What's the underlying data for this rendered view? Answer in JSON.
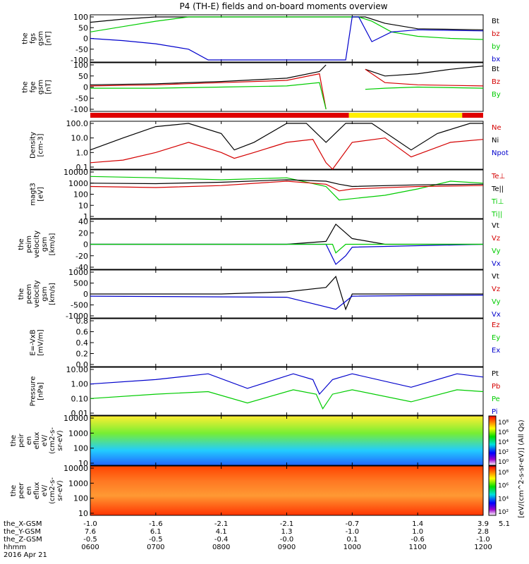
{
  "title": "P4 (TH-E) fields and on-board moments overview",
  "colors": {
    "black": "#000000",
    "red": "#d40000",
    "green": "#00cc00",
    "blue": "#0000cc",
    "yellow": "#ffee00",
    "cyan": "#00e0e0"
  },
  "panels": [
    {
      "id": "fgs",
      "ylabel": [
        "the",
        "fgs",
        "gsm",
        "[nT]"
      ],
      "ticks": [
        "100",
        "50",
        "0",
        "-50",
        "-100"
      ],
      "legend": [
        {
          "text": "Bt",
          "color": "black"
        },
        {
          "text": "bz",
          "color": "red"
        },
        {
          "text": "by",
          "color": "green"
        },
        {
          "text": "bx",
          "color": "blue"
        }
      ]
    },
    {
      "id": "fge",
      "ylabel": [
        "the",
        "fge",
        "gsm",
        "[nT]"
      ],
      "ticks": [
        "100",
        "50",
        "0",
        "-50",
        "-100"
      ],
      "legend": [
        {
          "text": "Bt",
          "color": "black"
        },
        {
          "text": "Bz",
          "color": "red"
        },
        {
          "text": "By",
          "color": "green"
        }
      ]
    },
    {
      "id": "density",
      "ylabel": [
        "Density",
        "[cm-3]"
      ],
      "ticks": [
        "100.0",
        "10.0",
        "1.0",
        "0.1"
      ],
      "legend": [
        {
          "text": "Ne",
          "color": "red"
        },
        {
          "text": "Ni",
          "color": "black"
        },
        {
          "text": "Npot",
          "color": "blue"
        }
      ]
    },
    {
      "id": "temp",
      "ylabel": [
        "magt3",
        "[eV]"
      ],
      "ticks": [
        "10000",
        "1000",
        "100",
        "10",
        "1"
      ],
      "legend": [
        {
          "text": "Te⊥",
          "color": "red"
        },
        {
          "text": "Te||",
          "color": "black"
        },
        {
          "text": "Ti⊥",
          "color": "green"
        },
        {
          "text": "Ti||",
          "color": "green"
        }
      ]
    },
    {
      "id": "peim",
      "ylabel": [
        "the",
        "peim",
        "velocity",
        "gsm",
        "[km/s]"
      ],
      "ticks": [
        "40",
        "20",
        "0",
        "-20",
        "-40"
      ],
      "legend": [
        {
          "text": "Vt",
          "color": "black"
        },
        {
          "text": "Vz",
          "color": "red"
        },
        {
          "text": "Vy",
          "color": "green"
        },
        {
          "text": "Vx",
          "color": "blue"
        }
      ]
    },
    {
      "id": "peem",
      "ylabel": [
        "the",
        "peem",
        "velocity",
        "gsm",
        "[km/s]"
      ],
      "ticks": [
        "1000",
        "500",
        "0",
        "-500",
        "-1000"
      ],
      "legend": [
        {
          "text": "Vt",
          "color": "black"
        },
        {
          "text": "Vz",
          "color": "red"
        },
        {
          "text": "Vy",
          "color": "green"
        },
        {
          "text": "Vx",
          "color": "blue"
        }
      ]
    },
    {
      "id": "efield",
      "ylabel": [
        "E=-VxB",
        "[mV/m]"
      ],
      "ticks": [
        "0.8",
        "0.6",
        "0.4",
        "0.2",
        "0.0"
      ],
      "legend": [
        {
          "text": "Ez",
          "color": "red"
        },
        {
          "text": "Ey",
          "color": "green"
        },
        {
          "text": "Ex",
          "color": "blue"
        }
      ]
    },
    {
      "id": "pressure",
      "ylabel": [
        "Pressure",
        "[nPa]"
      ],
      "ticks": [
        "10.00",
        "1.00",
        "0.10",
        "0.01"
      ],
      "legend": [
        {
          "text": "Pt",
          "color": "black"
        },
        {
          "text": "Pb",
          "color": "red"
        },
        {
          "text": "Pe",
          "color": "green"
        },
        {
          "text": "Pi",
          "color": "blue"
        }
      ]
    },
    {
      "id": "peir",
      "ylabel": [
        "the",
        "peir",
        "en",
        "eflux",
        "eV/",
        "(cm2-s-",
        "sr-eV)"
      ],
      "ticks": [
        "10000",
        "1000",
        "100",
        "10"
      ],
      "legend": []
    },
    {
      "id": "peer",
      "ylabel": [
        "the",
        "peer",
        "en",
        "eflux",
        "eV/",
        "(cm2-s-",
        "sr-eV)"
      ],
      "ticks": [
        "10000",
        "1000",
        "100",
        "10"
      ],
      "legend": []
    }
  ],
  "colorbar": {
    "label": "[eV/(cm^2-s-sr-eV)] (All Qs)",
    "ticks1": [
      "10⁸",
      "10⁶",
      "10⁴",
      "10²",
      "10⁰"
    ],
    "ticks2": [
      "10⁸",
      "10⁶",
      "10⁴",
      "10²"
    ]
  },
  "xaxis": {
    "rows": [
      {
        "label": "the_X-GSM",
        "values": [
          "-1.0",
          "-1.6",
          "-2.1",
          "-2.1",
          "-0.7",
          "1.4",
          "3.9",
          "5.1"
        ]
      },
      {
        "label": "the_Y-GSM",
        "values": [
          "7.6",
          "6.1",
          "4.1",
          "1.3",
          "-1.0",
          "1.0",
          "2.8",
          ""
        ]
      },
      {
        "label": "the_Z-GSM",
        "values": [
          "-0.5",
          "-0.5",
          "-0.4",
          "-0.0",
          "0.1",
          "-0.6",
          "-1.0",
          ""
        ]
      },
      {
        "label": "hhmm",
        "values": [
          "0600",
          "0700",
          "0800",
          "0900",
          "1000",
          "1100",
          "1200",
          ""
        ]
      }
    ],
    "date": "2016 Apr 21"
  },
  "chart_data": {
    "type": "line",
    "title": "P4 (TH-E) fields and on-board moments overview",
    "time_ticks": [
      "0600",
      "0700",
      "0800",
      "0900",
      "1000",
      "1100",
      "1200"
    ],
    "series": [
      {
        "panel": "fgs",
        "name": "Bt",
        "points": [
          [
            6.0,
            75
          ],
          [
            6.5,
            90
          ],
          [
            7.0,
            100
          ],
          [
            8.0,
            100
          ],
          [
            9.0,
            100
          ],
          [
            9.5,
            100
          ],
          [
            9.7,
            100
          ],
          [
            10.2,
            100
          ],
          [
            10.5,
            70
          ],
          [
            11.0,
            45
          ],
          [
            12.0,
            40
          ]
        ]
      },
      {
        "panel": "fgs",
        "name": "by",
        "points": [
          [
            6.0,
            30
          ],
          [
            6.5,
            55
          ],
          [
            7.0,
            80
          ],
          [
            7.5,
            100
          ],
          [
            9.5,
            100
          ],
          [
            9.9,
            100
          ],
          [
            10.1,
            100
          ],
          [
            10.3,
            80
          ],
          [
            10.6,
            30
          ],
          [
            11.0,
            10
          ],
          [
            11.5,
            0
          ],
          [
            12.0,
            -5
          ]
        ]
      },
      {
        "panel": "fgs",
        "name": "bx",
        "points": [
          [
            6.0,
            0
          ],
          [
            6.5,
            -10
          ],
          [
            7.0,
            -25
          ],
          [
            7.5,
            -50
          ],
          [
            7.8,
            -100
          ],
          [
            9.9,
            -100
          ],
          [
            10.0,
            100
          ],
          [
            10.1,
            100
          ],
          [
            10.3,
            -15
          ],
          [
            10.6,
            30
          ],
          [
            11.0,
            40
          ],
          [
            12.0,
            35
          ]
        ]
      },
      {
        "panel": "density",
        "name": "Ni",
        "points": [
          [
            6.0,
            1.5
          ],
          [
            6.5,
            10
          ],
          [
            7.0,
            60
          ],
          [
            7.5,
            100
          ],
          [
            8.0,
            20
          ],
          [
            8.2,
            1.5
          ],
          [
            8.5,
            5
          ],
          [
            9.0,
            100
          ],
          [
            9.3,
            100
          ],
          [
            9.6,
            5
          ],
          [
            9.9,
            100
          ],
          [
            10.3,
            100
          ],
          [
            10.9,
            1.5
          ],
          [
            11.3,
            20
          ],
          [
            11.8,
            100
          ],
          [
            12.0,
            100
          ]
        ]
      },
      {
        "panel": "density",
        "name": "Ne",
        "points": [
          [
            6.0,
            0.2
          ],
          [
            6.5,
            0.3
          ],
          [
            7.0,
            1.0
          ],
          [
            7.5,
            5
          ],
          [
            8.0,
            1.0
          ],
          [
            8.2,
            0.4
          ],
          [
            8.5,
            1.0
          ],
          [
            9.0,
            5
          ],
          [
            9.4,
            8
          ],
          [
            9.6,
            0.2
          ],
          [
            9.7,
            0.05
          ],
          [
            10.0,
            5
          ],
          [
            10.5,
            10
          ],
          [
            10.9,
            0.5
          ],
          [
            11.5,
            5
          ],
          [
            12.0,
            8
          ]
        ]
      },
      {
        "panel": "pressure",
        "name": "Pi",
        "points": [
          [
            6.0,
            1.0
          ],
          [
            7.0,
            2.0
          ],
          [
            7.8,
            5
          ],
          [
            8.4,
            0.5
          ],
          [
            9.1,
            5
          ],
          [
            9.4,
            2
          ],
          [
            9.5,
            0.2
          ],
          [
            9.7,
            2
          ],
          [
            10.0,
            5
          ],
          [
            10.9,
            0.6
          ],
          [
            11.6,
            5
          ],
          [
            12.0,
            3
          ]
        ]
      },
      {
        "panel": "pressure",
        "name": "Pe",
        "points": [
          [
            6.0,
            0.1
          ],
          [
            7.0,
            0.2
          ],
          [
            7.8,
            0.3
          ],
          [
            8.4,
            0.05
          ],
          [
            9.1,
            0.4
          ],
          [
            9.45,
            0.2
          ],
          [
            9.55,
            0.02
          ],
          [
            9.7,
            0.2
          ],
          [
            10.0,
            0.4
          ],
          [
            10.9,
            0.06
          ],
          [
            11.6,
            0.4
          ],
          [
            12.0,
            0.3
          ]
        ]
      }
    ]
  }
}
